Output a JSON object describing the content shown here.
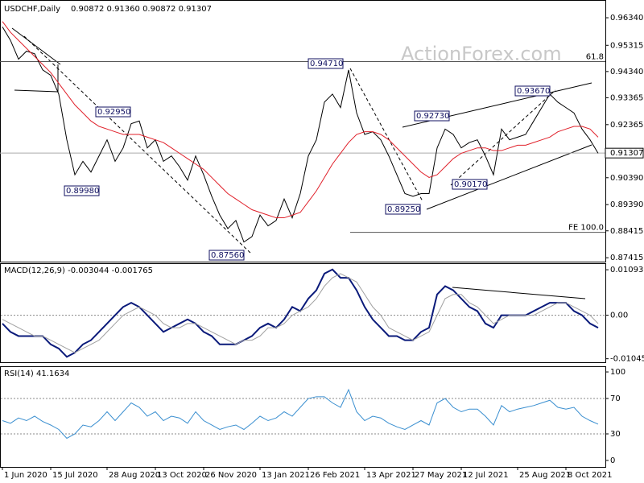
{
  "watermark": "ActionForex.com",
  "chart_data": [
    {
      "type": "line",
      "title": "USDCHF,Daily",
      "subtitle": "0.90872 0.91360 0.90872 0.91307",
      "series": [
        {
          "color": "#000000",
          "values": [
            0.96,
            0.955,
            0.948,
            0.951,
            0.95,
            0.944,
            0.942,
            0.935,
            0.918,
            0.905,
            0.91,
            0.906,
            0.912,
            0.918,
            0.91,
            0.915,
            0.924,
            0.925,
            0.915,
            0.918,
            0.91,
            0.912,
            0.908,
            0.903,
            0.912,
            0.905,
            0.897,
            0.89,
            0.885,
            0.888,
            0.88,
            0.882,
            0.89,
            0.886,
            0.888,
            0.896,
            0.889,
            0.898,
            0.912,
            0.918,
            0.932,
            0.935,
            0.93,
            0.944,
            0.928,
            0.92,
            0.921,
            0.918,
            0.912,
            0.905,
            0.898,
            0.897,
            0.898,
            0.898,
            0.915,
            0.922,
            0.92,
            0.915,
            0.917,
            0.918,
            0.912,
            0.905,
            0.922,
            0.918,
            0.919,
            0.92,
            0.925,
            0.93,
            0.935,
            0.932,
            0.93,
            0.928,
            0.922,
            0.918,
            0.913
          ]
        },
        {
          "color": "#e0202a",
          "values": [
            0.962,
            0.958,
            0.955,
            0.952,
            0.949,
            0.946,
            0.943,
            0.939,
            0.935,
            0.931,
            0.928,
            0.925,
            0.923,
            0.922,
            0.921,
            0.92,
            0.92,
            0.92,
            0.919,
            0.918,
            0.917,
            0.915,
            0.913,
            0.911,
            0.909,
            0.907,
            0.904,
            0.901,
            0.898,
            0.896,
            0.894,
            0.892,
            0.891,
            0.89,
            0.889,
            0.889,
            0.89,
            0.891,
            0.895,
            0.899,
            0.904,
            0.909,
            0.913,
            0.917,
            0.92,
            0.921,
            0.921,
            0.92,
            0.918,
            0.915,
            0.912,
            0.909,
            0.906,
            0.904,
            0.905,
            0.908,
            0.911,
            0.913,
            0.914,
            0.915,
            0.915,
            0.914,
            0.914,
            0.915,
            0.916,
            0.916,
            0.917,
            0.918,
            0.919,
            0.921,
            0.922,
            0.923,
            0.923,
            0.922,
            0.919
          ]
        }
      ],
      "ylim": [
        0.8727,
        0.97
      ],
      "yticks": [
        {
          "value": 0.9634,
          "label": "0.96340"
        },
        0.95315,
        {
          "value": 0.9434,
          "label": "0.94340"
        },
        0.93365,
        0.92365,
        {
          "value": 0.9039,
          "label": "0.90390"
        },
        {
          "value": 0.8939,
          "label": "0.89390"
        },
        0.88415,
        0.87415
      ],
      "grid": false,
      "levels": [
        {
          "value": 0.9471,
          "label": "61.8"
        },
        {
          "value": 0.8836,
          "label": "FE 100.0"
        },
        {
          "value": 0.91307,
          "label": "0.91307"
        }
      ],
      "annotations": [
        "0.94710",
        "0.92950",
        "0.89980",
        "0.87560",
        "0.92730",
        "0.93670",
        "0.90170",
        "0.89250"
      ]
    },
    {
      "type": "line",
      "title": "MACD(12,26,9) -0.003044 -0.001765",
      "series": [
        {
          "color": "#0a1a7a",
          "values": [
            -0.002,
            -0.004,
            -0.005,
            -0.005,
            -0.005,
            -0.005,
            -0.007,
            -0.008,
            -0.01,
            -0.009,
            -0.007,
            -0.006,
            -0.004,
            -0.002,
            0.0,
            0.002,
            0.003,
            0.002,
            0.0,
            -0.002,
            -0.004,
            -0.003,
            -0.002,
            -0.001,
            -0.002,
            -0.004,
            -0.005,
            -0.007,
            -0.007,
            -0.007,
            -0.006,
            -0.005,
            -0.003,
            -0.002,
            -0.003,
            -0.001,
            0.002,
            0.001,
            0.004,
            0.006,
            0.01,
            0.011,
            0.009,
            0.009,
            0.006,
            0.002,
            -0.001,
            -0.003,
            -0.005,
            -0.005,
            -0.006,
            -0.006,
            -0.004,
            -0.003,
            0.005,
            0.007,
            0.006,
            0.004,
            0.002,
            0.001,
            -0.002,
            -0.003,
            0.0,
            0.0,
            0.0,
            0.0,
            0.001,
            0.002,
            0.003,
            0.003,
            0.003,
            0.001,
            0.0,
            -0.002,
            -0.003
          ]
        },
        {
          "color": "#a0a0a0",
          "values": [
            -0.001,
            -0.002,
            -0.003,
            -0.004,
            -0.005,
            -0.005,
            -0.006,
            -0.007,
            -0.008,
            -0.009,
            -0.008,
            -0.007,
            -0.006,
            -0.004,
            -0.002,
            0.0,
            0.001,
            0.002,
            0.001,
            0.0,
            -0.002,
            -0.003,
            -0.003,
            -0.002,
            -0.002,
            -0.003,
            -0.004,
            -0.005,
            -0.006,
            -0.007,
            -0.006,
            -0.006,
            -0.005,
            -0.003,
            -0.003,
            -0.002,
            0.0,
            0.001,
            0.002,
            0.004,
            0.007,
            0.009,
            0.01,
            0.009,
            0.008,
            0.005,
            0.002,
            0.0,
            -0.003,
            -0.004,
            -0.005,
            -0.006,
            -0.005,
            -0.004,
            0.0,
            0.004,
            0.005,
            0.005,
            0.003,
            0.002,
            0.0,
            -0.002,
            -0.001,
            0.0,
            0.0,
            0.0,
            0.0,
            0.001,
            0.002,
            0.003,
            0.003,
            0.002,
            0.001,
            0.0,
            -0.002
          ]
        }
      ],
      "ylim": [
        -0.0113,
        0.0125
      ],
      "yticks": [
        -0.010459,
        {
          "value": 0,
          "label": "0.00"
        },
        0.010935
      ],
      "grid": true
    },
    {
      "type": "line",
      "title": "RSI(14) 41.1634",
      "series": [
        {
          "color": "#3a8fd0",
          "values": [
            45,
            42,
            48,
            45,
            50,
            44,
            40,
            35,
            25,
            30,
            40,
            38,
            45,
            55,
            45,
            55,
            65,
            60,
            50,
            55,
            45,
            50,
            48,
            42,
            55,
            45,
            40,
            35,
            38,
            40,
            35,
            42,
            50,
            45,
            48,
            55,
            50,
            60,
            70,
            72,
            72,
            65,
            60,
            80,
            55,
            45,
            50,
            48,
            42,
            38,
            35,
            40,
            45,
            40,
            65,
            70,
            60,
            55,
            58,
            58,
            50,
            40,
            62,
            55,
            58,
            60,
            62,
            65,
            68,
            60,
            58,
            60,
            50,
            45,
            41
          ]
        }
      ],
      "ylim": [
        -7.3,
        106.4
      ],
      "yticks": [
        0,
        30,
        70,
        100
      ],
      "grid": true,
      "categories": [
        "1 Jun 2020",
        null,
        null,
        null,
        null,
        null,
        "15 Jul 2020",
        null,
        null,
        null,
        null,
        null,
        null,
        "28 Aug 2020",
        null,
        null,
        null,
        null,
        null,
        "13 Oct 2020",
        null,
        null,
        null,
        null,
        null,
        "26 Nov 2020",
        null,
        null,
        null,
        null,
        null,
        null,
        "13 Jan 2021",
        null,
        null,
        null,
        null,
        null,
        "26 Feb 2021",
        null,
        null,
        null,
        null,
        null,
        null,
        "13 Apr 2021",
        null,
        null,
        null,
        null,
        null,
        "27 May 2021",
        null,
        null,
        null,
        null,
        null,
        "12 Jul 2021",
        null,
        null,
        null,
        null,
        null,
        null,
        "25 Aug 2021",
        null,
        null,
        null,
        null,
        null,
        "8 Oct 2021",
        null,
        null,
        null,
        null
      ]
    }
  ]
}
